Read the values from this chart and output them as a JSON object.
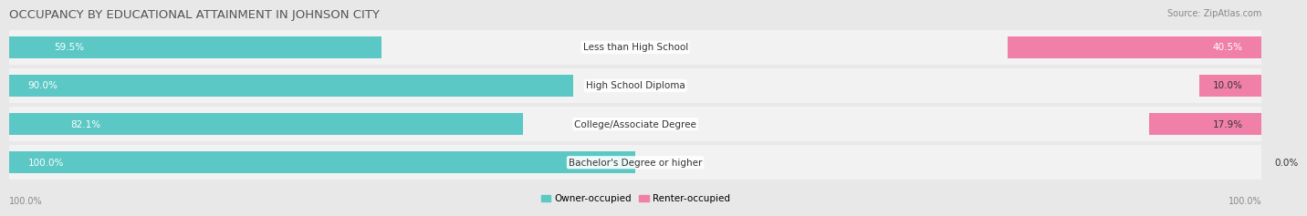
{
  "title": "OCCUPANCY BY EDUCATIONAL ATTAINMENT IN JOHNSON CITY",
  "source": "Source: ZipAtlas.com",
  "categories": [
    "Less than High School",
    "High School Diploma",
    "College/Associate Degree",
    "Bachelor's Degree or higher"
  ],
  "owner_pct": [
    59.5,
    90.0,
    82.1,
    100.0
  ],
  "renter_pct": [
    40.5,
    10.0,
    17.9,
    0.0
  ],
  "owner_color": "#5BC8C5",
  "renter_color": "#F080A8",
  "bg_color": "#E8E8E8",
  "bar_bg_color": "#F2F2F2",
  "row_sep_color": "#D8D8D8",
  "title_fontsize": 9.5,
  "label_fontsize": 7.5,
  "source_fontsize": 7,
  "legend_fontsize": 7.5,
  "bar_height": 0.62
}
